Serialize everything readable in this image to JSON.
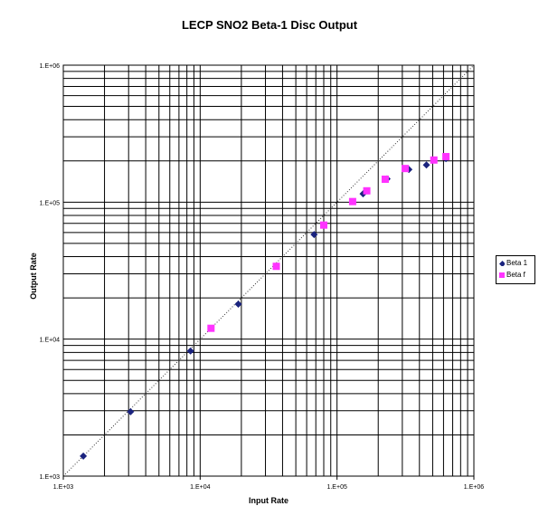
{
  "chart_data": {
    "type": "scatter",
    "title": "LECP SNO2 Beta-1 Disc Output",
    "xlabel": "Input Rate",
    "ylabel": "Output Rate",
    "xscale": "log",
    "yscale": "log",
    "xlim": [
      1000,
      1000000
    ],
    "ylim": [
      1000,
      1000000
    ],
    "x_ticks": [
      "1.E+03",
      "1.E+04",
      "1.E+05",
      "1.E+06"
    ],
    "y_ticks": [
      "1.E+03",
      "1.E+04",
      "1.E+05",
      "1.E+06"
    ],
    "grid": true,
    "reference_line": "y = x (dotted)",
    "legend_position": "right",
    "series": [
      {
        "name": "Beta 1",
        "marker": "diamond",
        "color": "#1a237e",
        "points": [
          [
            1400,
            1400
          ],
          [
            3100,
            2950
          ],
          [
            8500,
            8200
          ],
          [
            19000,
            18000
          ],
          [
            68000,
            58000
          ],
          [
            155000,
            115000
          ],
          [
            232000,
            148000
          ],
          [
            335000,
            173000
          ],
          [
            450000,
            187000
          ],
          [
            625000,
            208000
          ]
        ]
      },
      {
        "name": "Beta f",
        "marker": "square",
        "color": "#ff33ff",
        "points": [
          [
            12000,
            12000
          ],
          [
            36000,
            34000
          ],
          [
            80000,
            68000
          ],
          [
            130000,
            101000
          ],
          [
            165000,
            121000
          ],
          [
            225000,
            147000
          ],
          [
            315000,
            176000
          ],
          [
            510000,
            203000
          ],
          [
            625000,
            215000
          ]
        ]
      }
    ]
  }
}
